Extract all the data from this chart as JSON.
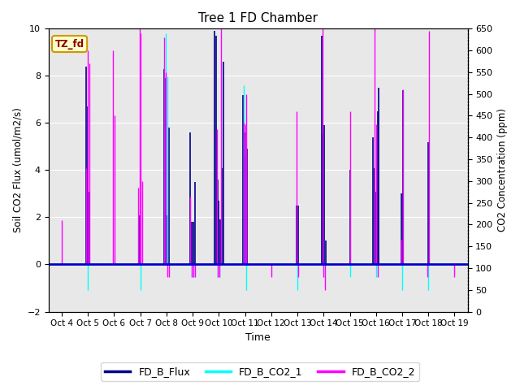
{
  "title": "Tree 1 FD Chamber",
  "xlabel": "Time",
  "ylabel_left": "Soil CO2 Flux (umol/m2/s)",
  "ylabel_right": "CO2 Concentration (ppm)",
  "ylim_left": [
    -2,
    10
  ],
  "ylim_right": [
    0,
    650
  ],
  "plot_bg": "#e8e8e8",
  "tz_label": "TZ_fd",
  "x_ticks": [
    "Oct 4",
    "Oct 5",
    "Oct 6",
    "Oct 7",
    "Oct 8",
    "Oct 9",
    "Oct 10",
    "Oct 11",
    "Oct 12",
    "Oct 13",
    "Oct 14",
    "Oct 15",
    "Oct 16",
    "Oct 17",
    "Oct 18",
    "Oct 19"
  ],
  "flux_color": "#00008B",
  "co2_1_color": "#00FFFF",
  "co2_2_color": "#FF00FF",
  "hline_color": "#0000CD",
  "legend_entries": [
    "FD_B_Flux",
    "FD_B_CO2_1",
    "FD_B_CO2_2"
  ],
  "legend_colors": [
    "#00008B",
    "#00FFFF",
    "#FF00FF"
  ],
  "flux_lw": 1.2,
  "co2_lw": 1.0,
  "flux_data_x": [
    4,
    5,
    5,
    5,
    7,
    7,
    8,
    8,
    8,
    8,
    9,
    9,
    9,
    9,
    10,
    10,
    10,
    10,
    10,
    10,
    10,
    11,
    11,
    11,
    11,
    13,
    13,
    14,
    14,
    14,
    14,
    15,
    16,
    16,
    16,
    16,
    16,
    17,
    17,
    18,
    19
  ],
  "flux_data_y": [
    0.0,
    8.4,
    6.7,
    3.1,
    2.1,
    3.5,
    8.3,
    7.9,
    2.1,
    5.8,
    5.6,
    1.8,
    1.8,
    3.5,
    9.9,
    9.7,
    3.6,
    2.7,
    1.9,
    4.1,
    8.6,
    7.2,
    5.6,
    4.6,
    4.9,
    2.5,
    2.5,
    9.7,
    5.5,
    5.9,
    1.0,
    4.0,
    5.4,
    4.1,
    3.1,
    6.5,
    7.5,
    3.0,
    7.4,
    5.2,
    0.0
  ],
  "co2_1_ppm_x": [
    5,
    7,
    8,
    8,
    9,
    9,
    10,
    10,
    11,
    11,
    11,
    13,
    14,
    15,
    16,
    17,
    18
  ],
  "co2_1_ppm_y": [
    50,
    50,
    640,
    540,
    80,
    80,
    80,
    80,
    520,
    400,
    50,
    50,
    80,
    80,
    80,
    50,
    50
  ],
  "co2_2_ppm_x": [
    4,
    5,
    5,
    5,
    6,
    6,
    7,
    7,
    7,
    7,
    8,
    8,
    8,
    8,
    9,
    9,
    9,
    9,
    10,
    10,
    10,
    10,
    11,
    11,
    11,
    12,
    13,
    13,
    14,
    14,
    14,
    15,
    16,
    16,
    16,
    17,
    17,
    18,
    18,
    19
  ],
  "co2_2_ppm_y": [
    210,
    330,
    600,
    570,
    600,
    450,
    285,
    745,
    640,
    300,
    630,
    550,
    80,
    80,
    265,
    80,
    80,
    80,
    420,
    80,
    80,
    690,
    435,
    430,
    500,
    80,
    460,
    80,
    650,
    80,
    50,
    460,
    760,
    430,
    80,
    165,
    510,
    80,
    645,
    80
  ]
}
